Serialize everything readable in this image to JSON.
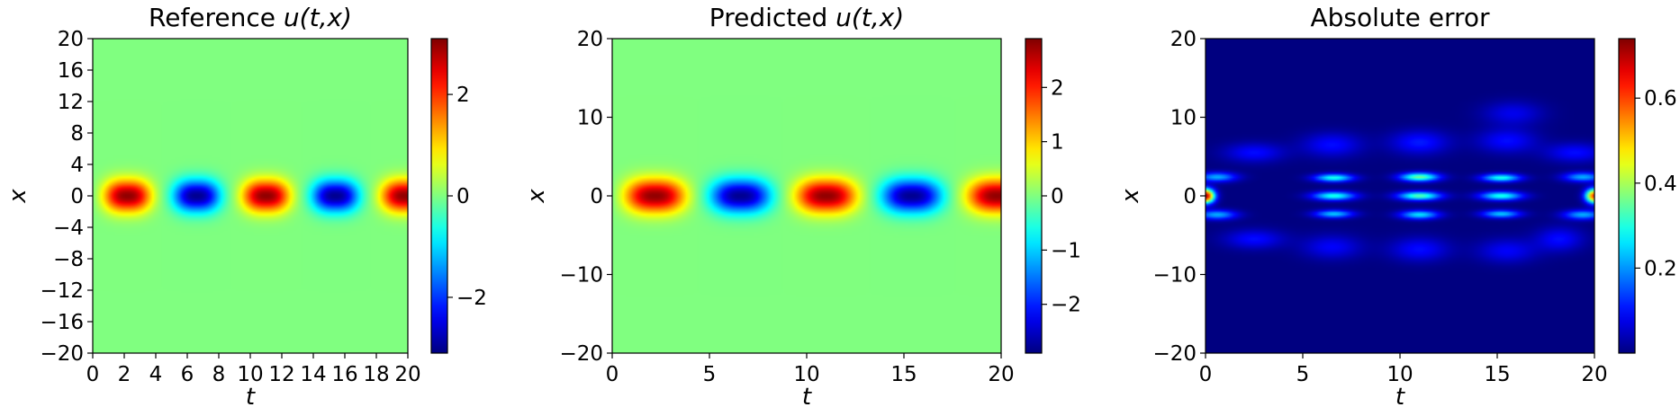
{
  "figure": {
    "description_panels": 3
  },
  "chart_data": [
    {
      "type": "heatmap",
      "title": "Reference u(t,x)",
      "title_prefix": "Reference ",
      "title_math": "u(t,x)",
      "xlabel": "t",
      "ylabel": "x",
      "xlim": [
        0,
        20
      ],
      "ylim": [
        -20,
        20
      ],
      "xticks": [
        0,
        2,
        4,
        6,
        8,
        10,
        12,
        14,
        16,
        18,
        20
      ],
      "xtick_labels": [
        "0",
        "2",
        "4",
        "6",
        "8",
        "10",
        "12",
        "14",
        "16",
        "18",
        "20"
      ],
      "yticks": [
        -20,
        -16,
        -12,
        -8,
        -4,
        0,
        4,
        8,
        12,
        16,
        20
      ],
      "ytick_labels": [
        "−20",
        "−16",
        "−12",
        "−8",
        "−4",
        "0",
        "4",
        "8",
        "12",
        "16",
        "20"
      ],
      "colormap": "jet",
      "clim": [
        -3.1,
        3.1
      ],
      "colorbar_ticks": [
        -2,
        0,
        2
      ],
      "colorbar_tick_labels": [
        "−2",
        "0",
        "2"
      ],
      "field": {
        "kind": "wave",
        "amplitude": 3.0,
        "period": 8.8,
        "phase_t": 2.2,
        "width_t": 1.45,
        "width_x": 2.0,
        "exponent_t": 2.6
      }
    },
    {
      "type": "heatmap",
      "title": "Predicted u(t,x)",
      "title_prefix": "Predicted ",
      "title_math": "u(t,x)",
      "xlabel": "t",
      "ylabel": "x",
      "xlim": [
        0,
        20
      ],
      "ylim": [
        -20,
        20
      ],
      "xticks": [
        0,
        5,
        10,
        15,
        20
      ],
      "xtick_labels": [
        "0",
        "5",
        "10",
        "15",
        "20"
      ],
      "yticks": [
        -20,
        -10,
        0,
        10,
        20
      ],
      "ytick_labels": [
        "−20",
        "−10",
        "0",
        "10",
        "20"
      ],
      "colormap": "jet",
      "clim": [
        -2.9,
        2.9
      ],
      "colorbar_ticks": [
        -2,
        -1,
        0,
        1,
        2
      ],
      "colorbar_tick_labels": [
        "−2",
        "−1",
        "0",
        "1",
        "2"
      ],
      "field": {
        "kind": "wave",
        "amplitude": 2.8,
        "period": 8.8,
        "phase_t": 2.2,
        "width_t": 1.5,
        "width_x": 2.1,
        "exponent_t": 2.6
      }
    },
    {
      "type": "heatmap",
      "title": "Absolute error",
      "title_prefix": "Absolute error",
      "title_math": "",
      "xlabel": "t",
      "ylabel": "x",
      "xlim": [
        0,
        20
      ],
      "ylim": [
        -20,
        20
      ],
      "xticks": [
        0,
        5,
        10,
        15,
        20
      ],
      "xtick_labels": [
        "0",
        "5",
        "10",
        "15",
        "20"
      ],
      "yticks": [
        -20,
        -10,
        0,
        10,
        20
      ],
      "ytick_labels": [
        "−20",
        "−10",
        "0",
        "10",
        "20"
      ],
      "colormap": "jet",
      "clim": [
        0.0,
        0.74
      ],
      "colorbar_ticks": [
        0.2,
        0.4,
        0.6
      ],
      "colorbar_tick_labels": [
        "0.2",
        "0.4",
        "0.6"
      ],
      "field": {
        "kind": "error",
        "peak_value": 0.74,
        "blobs": [
          {
            "t": 0.0,
            "x": 0.0,
            "st": 0.45,
            "sx": 0.9,
            "a": 0.72
          },
          {
            "t": 20.0,
            "x": 0.0,
            "st": 0.45,
            "sx": 0.9,
            "a": 0.62
          },
          {
            "t": 0.6,
            "x": 2.4,
            "st": 1.0,
            "sx": 0.6,
            "a": 0.22
          },
          {
            "t": 0.6,
            "x": -2.4,
            "st": 1.0,
            "sx": 0.6,
            "a": 0.22
          },
          {
            "t": 6.6,
            "x": 0.0,
            "st": 1.1,
            "sx": 0.55,
            "a": 0.3
          },
          {
            "t": 6.6,
            "x": 2.3,
            "st": 1.0,
            "sx": 0.5,
            "a": 0.3
          },
          {
            "t": 6.6,
            "x": -2.3,
            "st": 1.0,
            "sx": 0.5,
            "a": 0.24
          },
          {
            "t": 11.0,
            "x": 0.0,
            "st": 1.1,
            "sx": 0.55,
            "a": 0.34
          },
          {
            "t": 11.0,
            "x": 2.4,
            "st": 1.0,
            "sx": 0.55,
            "a": 0.36
          },
          {
            "t": 11.0,
            "x": -2.4,
            "st": 1.0,
            "sx": 0.55,
            "a": 0.26
          },
          {
            "t": 15.2,
            "x": 0.0,
            "st": 1.1,
            "sx": 0.55,
            "a": 0.3
          },
          {
            "t": 15.2,
            "x": 2.3,
            "st": 1.0,
            "sx": 0.5,
            "a": 0.3
          },
          {
            "t": 15.2,
            "x": -2.3,
            "st": 1.0,
            "sx": 0.5,
            "a": 0.24
          },
          {
            "t": 19.4,
            "x": 2.4,
            "st": 1.0,
            "sx": 0.6,
            "a": 0.22
          },
          {
            "t": 19.4,
            "x": -2.4,
            "st": 1.0,
            "sx": 0.6,
            "a": 0.22
          },
          {
            "t": 2.5,
            "x": 5.5,
            "st": 1.5,
            "sx": 1.2,
            "a": 0.1
          },
          {
            "t": 6.5,
            "x": 6.5,
            "st": 1.5,
            "sx": 1.5,
            "a": 0.1
          },
          {
            "t": 11.0,
            "x": 6.8,
            "st": 1.5,
            "sx": 1.5,
            "a": 0.11
          },
          {
            "t": 15.5,
            "x": 7.0,
            "st": 1.5,
            "sx": 1.5,
            "a": 0.1
          },
          {
            "t": 15.8,
            "x": 10.5,
            "st": 1.5,
            "sx": 1.5,
            "a": 0.08
          },
          {
            "t": 19.0,
            "x": 5.5,
            "st": 1.5,
            "sx": 1.2,
            "a": 0.1
          },
          {
            "t": 2.5,
            "x": -5.5,
            "st": 1.5,
            "sx": 1.2,
            "a": 0.1
          },
          {
            "t": 6.5,
            "x": -6.5,
            "st": 1.5,
            "sx": 1.5,
            "a": 0.09
          },
          {
            "t": 11.0,
            "x": -6.8,
            "st": 1.5,
            "sx": 1.5,
            "a": 0.1
          },
          {
            "t": 15.5,
            "x": -7.0,
            "st": 1.5,
            "sx": 1.5,
            "a": 0.09
          },
          {
            "t": 18.2,
            "x": -5.5,
            "st": 1.2,
            "sx": 1.5,
            "a": 0.1
          }
        ]
      }
    }
  ]
}
